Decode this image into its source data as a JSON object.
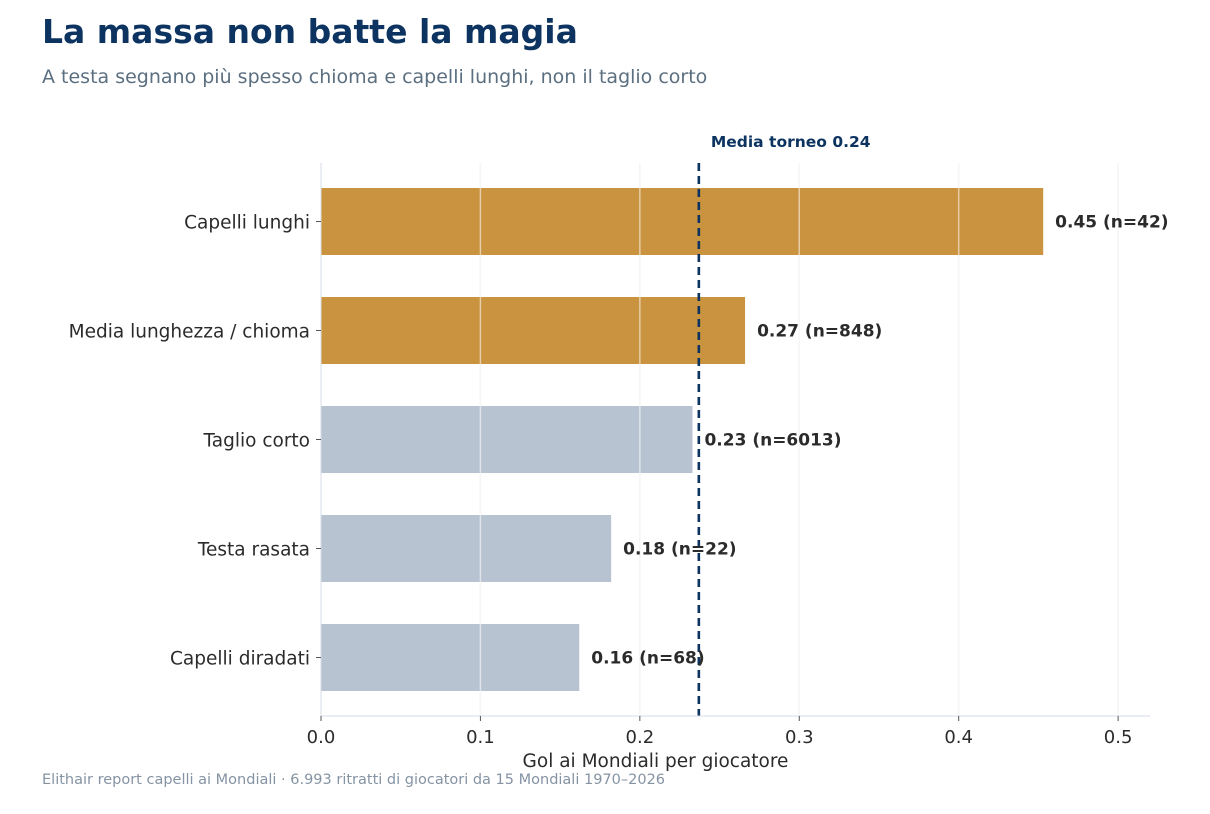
{
  "header": {
    "title": "La massa non batte la magia",
    "subtitle": "A testa segnano più spesso chioma e capelli lunghi, non il taglio corto"
  },
  "footer": {
    "source": "Elithair report capelli ai Mondiali  ·  6.993 ritratti di giocatori da 15 Mondiali 1970–2026"
  },
  "colors": {
    "highlight": "#c9933f",
    "muted": "#b7c3d0",
    "reference": "#0d3461",
    "grid": "#e8e8e8"
  },
  "chart_data": {
    "type": "bar",
    "orientation": "horizontal",
    "categories": [
      "Capelli lunghi",
      "Media lunghezza / chioma",
      "Taglio corto",
      "Testa rasata",
      "Capelli diradati"
    ],
    "values": [
      0.453,
      0.266,
      0.233,
      0.182,
      0.162
    ],
    "data_labels": [
      "0.45  (n=42)",
      "0.27  (n=848)",
      "0.23  (n=6013)",
      "0.18  (n=22)",
      "0.16  (n=68)"
    ],
    "highlighted": [
      true,
      true,
      false,
      false,
      false
    ],
    "xlabel": "Gol ai Mondiali per giocatore",
    "xlim": [
      0,
      0.52
    ],
    "xticks": [
      0.0,
      0.1,
      0.2,
      0.3,
      0.4,
      0.5
    ],
    "xtick_labels": [
      "0.0",
      "0.1",
      "0.2",
      "0.3",
      "0.4",
      "0.5"
    ],
    "grid": "vertical",
    "reference_line": {
      "value": 0.237,
      "label": "Media torneo 0.24"
    }
  }
}
